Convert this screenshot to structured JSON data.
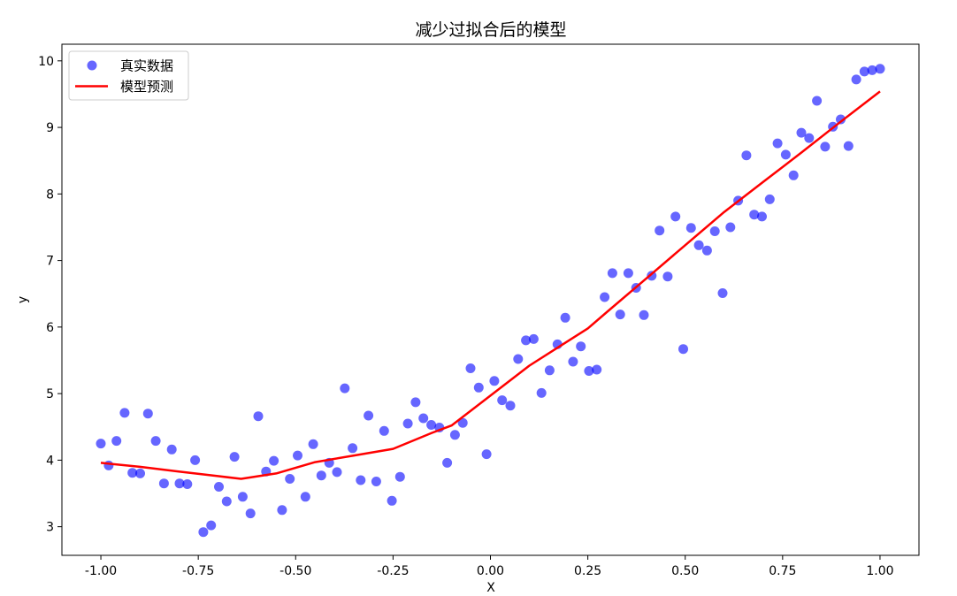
{
  "chart_data": {
    "type": "scatter",
    "title": "减少过拟合后的模型",
    "xlabel": "X",
    "ylabel": "y",
    "xlim": [
      -1.1,
      1.1
    ],
    "ylim": [
      2.57,
      10.25
    ],
    "xticks": [
      -1.0,
      -0.75,
      -0.5,
      -0.25,
      0.0,
      0.25,
      0.5,
      0.75,
      1.0
    ],
    "xtick_labels": [
      "-1.00",
      "-0.75",
      "-0.50",
      "-0.25",
      "0.00",
      "0.25",
      "0.50",
      "0.75",
      "1.00"
    ],
    "yticks": [
      3,
      4,
      5,
      6,
      7,
      8,
      9,
      10
    ],
    "ytick_labels": [
      "3",
      "4",
      "5",
      "6",
      "7",
      "8",
      "9",
      "10"
    ],
    "grid": false,
    "legend_position": "top-left",
    "series": [
      {
        "name": "真实数据",
        "kind": "scatter",
        "color": "#0000ff",
        "x": [
          -1.0,
          -0.98,
          -0.96,
          -0.939,
          -0.919,
          -0.899,
          -0.879,
          -0.859,
          -0.838,
          -0.818,
          -0.798,
          -0.778,
          -0.758,
          -0.737,
          -0.717,
          -0.697,
          -0.677,
          -0.657,
          -0.636,
          -0.616,
          -0.596,
          -0.576,
          -0.556,
          -0.535,
          -0.515,
          -0.495,
          -0.475,
          -0.455,
          -0.434,
          -0.414,
          -0.394,
          -0.374,
          -0.354,
          -0.333,
          -0.313,
          -0.293,
          -0.273,
          -0.253,
          -0.232,
          -0.212,
          -0.192,
          -0.172,
          -0.152,
          -0.131,
          -0.111,
          -0.091,
          -0.071,
          -0.051,
          -0.03,
          -0.01,
          0.01,
          0.03,
          0.051,
          0.071,
          0.091,
          0.111,
          0.131,
          0.152,
          0.172,
          0.192,
          0.212,
          0.232,
          0.253,
          0.273,
          0.293,
          0.313,
          0.333,
          0.354,
          0.374,
          0.394,
          0.414,
          0.434,
          0.455,
          0.475,
          0.495,
          0.515,
          0.535,
          0.556,
          0.576,
          0.596,
          0.616,
          0.636,
          0.657,
          0.677,
          0.697,
          0.717,
          0.737,
          0.758,
          0.778,
          0.798,
          0.818,
          0.838,
          0.859,
          0.879,
          0.899,
          0.919,
          0.939,
          0.96,
          0.98,
          1.0
        ],
        "y": [
          4.25,
          3.92,
          4.29,
          4.71,
          3.81,
          3.8,
          4.7,
          4.29,
          3.65,
          4.16,
          3.65,
          3.64,
          4.0,
          2.92,
          3.02,
          3.6,
          3.38,
          4.05,
          3.45,
          3.2,
          4.66,
          3.83,
          3.99,
          3.25,
          3.72,
          4.07,
          3.45,
          4.24,
          3.77,
          3.96,
          3.82,
          5.08,
          4.18,
          3.7,
          4.67,
          3.68,
          4.44,
          3.39,
          3.75,
          4.55,
          4.87,
          4.63,
          4.53,
          4.49,
          3.96,
          4.38,
          4.56,
          5.38,
          5.09,
          4.09,
          5.19,
          4.9,
          4.82,
          5.52,
          5.8,
          5.82,
          5.01,
          5.35,
          5.74,
          6.14,
          5.48,
          5.71,
          5.34,
          5.36,
          6.45,
          6.81,
          6.19,
          6.81,
          6.59,
          6.18,
          6.77,
          7.45,
          6.76,
          7.66,
          5.67,
          7.49,
          7.23,
          7.15,
          7.44,
          6.51,
          7.5,
          7.9,
          8.58,
          7.69,
          7.66,
          7.92,
          8.76,
          8.59,
          8.28,
          8.92,
          8.84,
          9.4,
          8.71,
          9.01,
          9.12,
          8.72,
          9.72,
          9.84,
          9.86,
          9.88
        ]
      },
      {
        "name": "模型预测",
        "kind": "line",
        "color": "#ff0000",
        "x": [
          -1.0,
          -0.9,
          -0.8,
          -0.7,
          -0.64,
          -0.55,
          -0.45,
          -0.35,
          -0.25,
          -0.15,
          -0.1,
          0.0,
          0.1,
          0.25,
          0.3,
          0.4,
          0.5,
          0.6,
          0.7,
          0.8,
          0.9,
          1.0
        ],
        "y": [
          3.96,
          3.9,
          3.83,
          3.76,
          3.72,
          3.8,
          3.97,
          4.07,
          4.17,
          4.41,
          4.52,
          4.97,
          5.42,
          5.98,
          6.23,
          6.73,
          7.23,
          7.73,
          8.18,
          8.63,
          9.09,
          9.54
        ]
      }
    ]
  }
}
